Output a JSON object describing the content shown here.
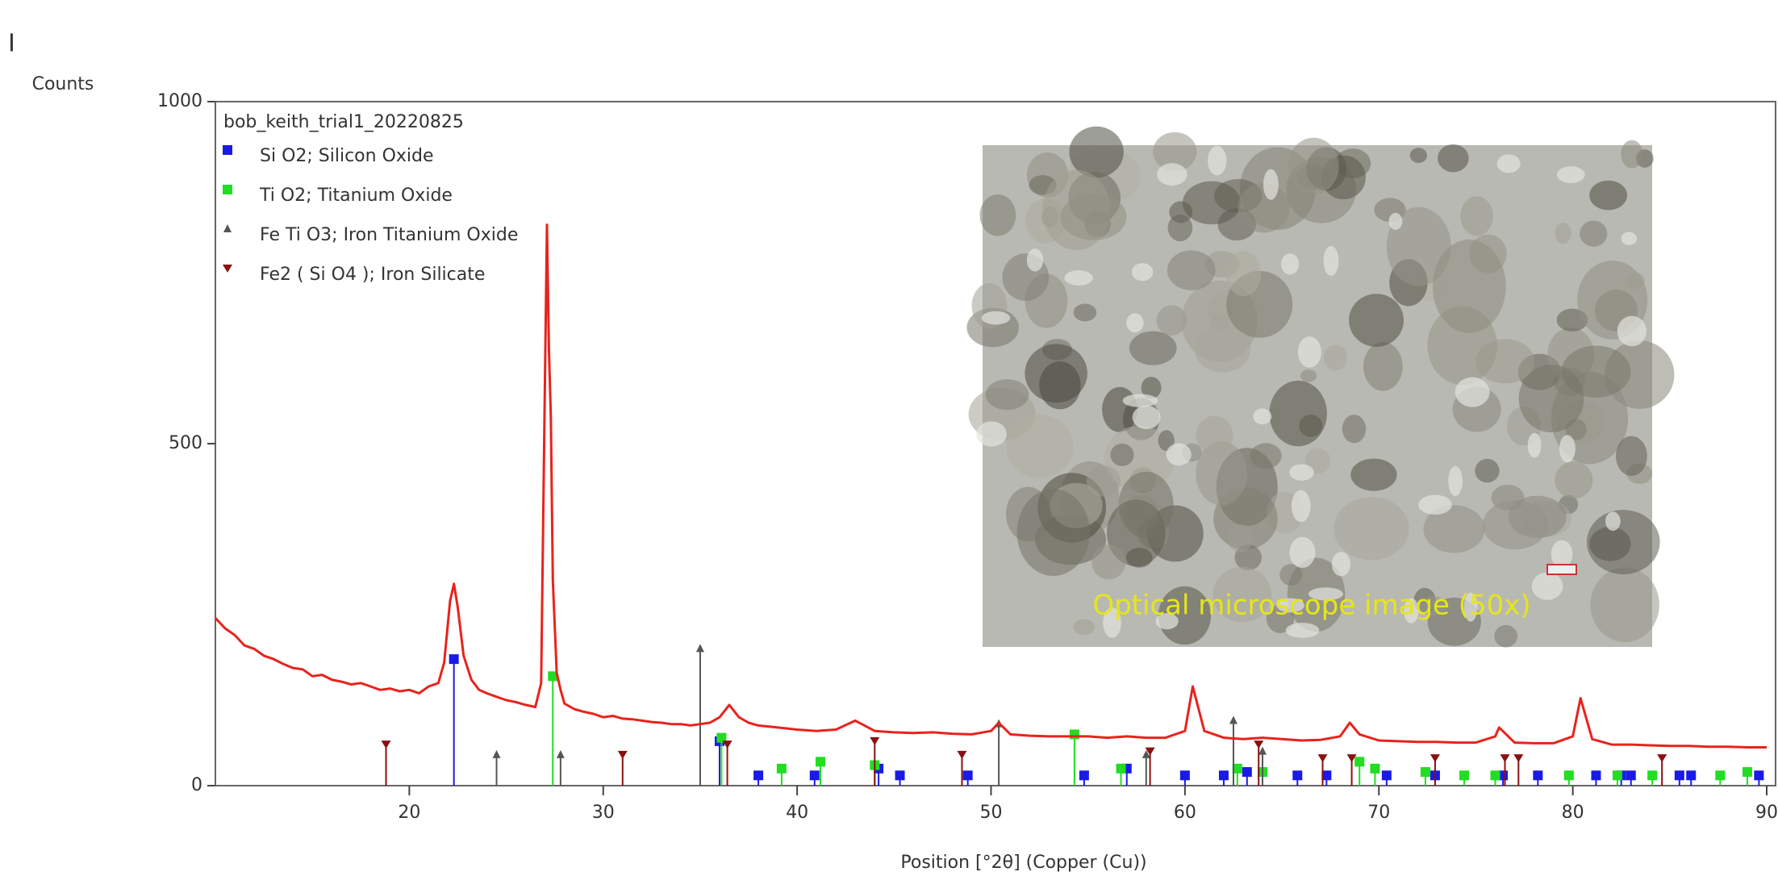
{
  "chart_data": {
    "type": "line",
    "panel_label": "I",
    "ylabel": "Counts",
    "xlabel": "Position [°2θ] (Copper (Cu))",
    "annotation": "Optical microscope image (50x)",
    "xlim": [
      10,
      90
    ],
    "ylim": [
      0,
      1000
    ],
    "xticks": [
      20,
      30,
      40,
      50,
      60,
      70,
      80,
      90
    ],
    "yticks": [
      0,
      500,
      1000
    ],
    "series": [
      {
        "name": "bob_keith_trial1_20220825",
        "color": "#e8231d",
        "x": [
          10,
          10.5,
          11,
          11.5,
          12,
          12.5,
          13,
          13.5,
          14,
          14.5,
          15,
          15.5,
          16,
          16.5,
          17,
          17.5,
          18,
          18.5,
          19,
          19.5,
          20,
          20.5,
          21,
          21.5,
          21.8,
          22.1,
          22.3,
          22.5,
          22.8,
          23.2,
          23.6,
          24,
          24.5,
          25,
          25.5,
          26,
          26.5,
          26.8,
          27.0,
          27.1,
          27.2,
          27.3,
          27.4,
          27.6,
          27.8,
          28,
          28.5,
          29,
          29.5,
          30,
          30.5,
          31,
          31.5,
          32,
          32.5,
          33,
          33.5,
          34,
          34.5,
          35,
          35.5,
          36,
          36.5,
          37,
          37.5,
          38,
          39,
          40,
          41,
          42,
          43,
          44,
          45,
          46,
          47,
          48,
          49,
          50,
          50.4,
          51,
          52,
          53,
          54,
          55,
          56,
          57,
          58,
          59,
          60,
          60.4,
          61,
          62,
          63,
          64,
          65,
          66,
          67,
          68,
          68.5,
          69,
          70,
          71,
          72,
          73,
          74,
          75,
          76,
          76.2,
          77,
          78,
          79,
          80,
          80.4,
          81,
          82,
          83,
          84,
          85,
          86,
          87,
          88,
          89,
          90
        ],
        "values": [
          245,
          230,
          220,
          205,
          200,
          190,
          185,
          178,
          172,
          170,
          160,
          162,
          155,
          152,
          148,
          150,
          145,
          140,
          142,
          138,
          140,
          135,
          145,
          150,
          180,
          270,
          295,
          260,
          190,
          155,
          140,
          135,
          130,
          125,
          122,
          118,
          115,
          150,
          600,
          820,
          640,
          540,
          300,
          165,
          140,
          120,
          112,
          108,
          105,
          100,
          102,
          98,
          97,
          95,
          93,
          92,
          90,
          90,
          88,
          90,
          92,
          100,
          118,
          100,
          92,
          88,
          85,
          82,
          80,
          82,
          95,
          80,
          78,
          77,
          78,
          76,
          75,
          80,
          92,
          75,
          73,
          72,
          72,
          72,
          70,
          72,
          70,
          70,
          80,
          145,
          80,
          70,
          68,
          70,
          68,
          66,
          67,
          72,
          92,
          75,
          66,
          65,
          64,
          64,
          63,
          63,
          72,
          85,
          63,
          62,
          62,
          72,
          128,
          68,
          60,
          60,
          59,
          58,
          58,
          57,
          57,
          56,
          56
        ]
      }
    ],
    "reference_series": [
      {
        "name": "Si O2; Silicon Oxide",
        "color": "#1a1ae6",
        "marker": "square",
        "x": [
          22.3,
          36.0,
          38.0,
          40.9,
          44.2,
          45.3,
          48.8,
          54.8,
          57.0,
          60.0,
          62.0,
          63.2,
          65.8,
          67.3,
          70.4,
          72.9,
          76.4,
          78.2,
          81.2,
          82.5,
          83.0,
          85.5,
          86.1,
          89.6
        ],
        "values": [
          185,
          65,
          15,
          15,
          25,
          15,
          15,
          15,
          25,
          15,
          15,
          20,
          15,
          15,
          15,
          15,
          15,
          15,
          15,
          15,
          15,
          15,
          15,
          15
        ]
      },
      {
        "name": "Ti O2; Titanium Oxide",
        "color": "#22dd22",
        "marker": "square",
        "x": [
          27.4,
          36.1,
          39.2,
          41.2,
          44.0,
          54.3,
          56.7,
          62.7,
          64.0,
          69.0,
          69.8,
          72.4,
          74.4,
          76.0,
          79.8,
          82.3,
          84.1,
          87.6,
          89.0
        ],
        "values": [
          160,
          70,
          25,
          35,
          30,
          75,
          25,
          25,
          20,
          35,
          25,
          20,
          15,
          15,
          15,
          15,
          15,
          15,
          20
        ]
      },
      {
        "name": "Fe Ti O3; Iron Titanium Oxide",
        "color": "#555555",
        "marker": "triangle",
        "x": [
          24.5,
          27.8,
          35.0,
          50.4,
          58.0,
          62.5,
          64.0
        ],
        "values": [
          45,
          45,
          200,
          90,
          45,
          95,
          50
        ]
      },
      {
        "name": "Fe2 ( Si O4 ); Iron Silicate",
        "color": "#8b1010",
        "marker": "triangle-down",
        "x": [
          18.8,
          31.0,
          36.4,
          44.0,
          48.5,
          58.2,
          63.8,
          67.1,
          68.6,
          72.9,
          76.5,
          77.2,
          84.6
        ],
        "values": [
          60,
          45,
          60,
          65,
          45,
          50,
          60,
          40,
          40,
          40,
          40,
          40,
          40
        ]
      }
    ]
  }
}
